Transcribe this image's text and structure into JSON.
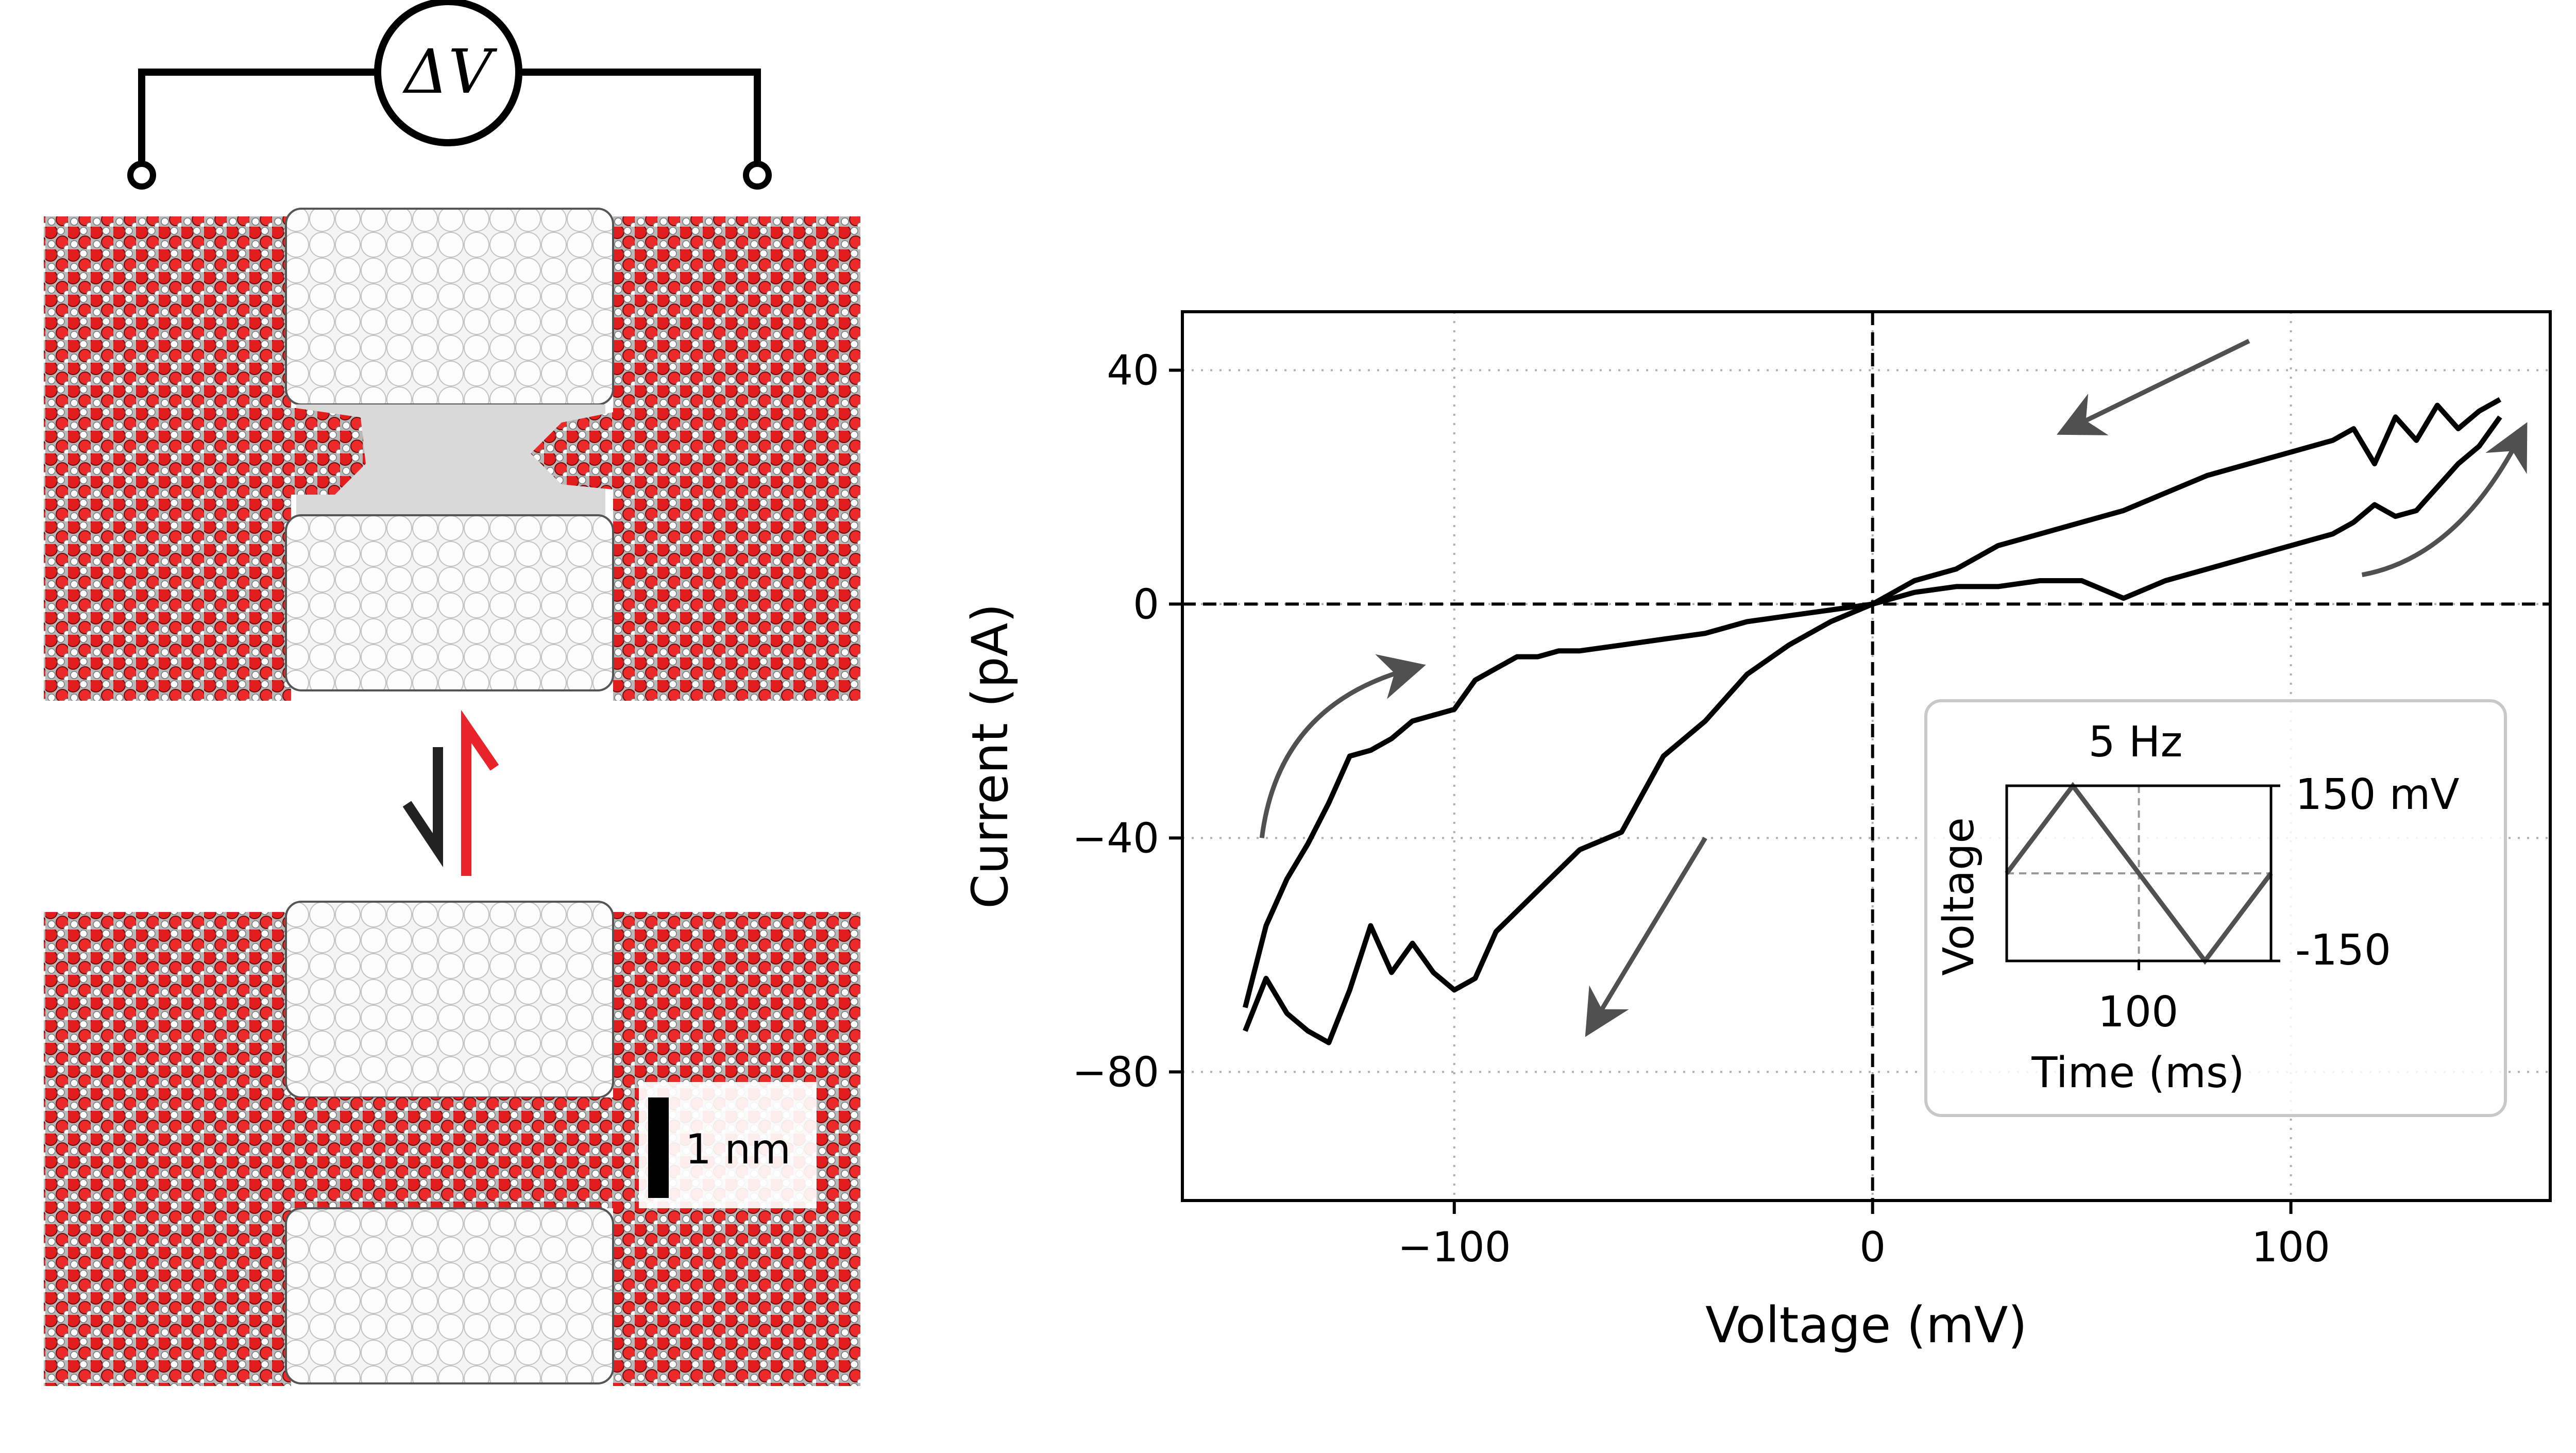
{
  "schematic": {
    "voltage_symbol": "ΔV",
    "scale_bar_label": "1 nm"
  },
  "chart_data": {
    "type": "line",
    "xlabel": "Voltage (mV)",
    "ylabel": "Current (pA)",
    "xlim": [
      -165,
      162
    ],
    "ylim": [
      -102,
      50
    ],
    "x_ticks": [
      -100,
      0,
      100
    ],
    "y_ticks": [
      40,
      0,
      -40,
      -80
    ],
    "x_tick_labels": [
      "−100",
      "0",
      "100"
    ],
    "y_tick_labels": [
      "40",
      "0",
      "−40",
      "−80"
    ],
    "grid": true,
    "zero_lines": "dashed",
    "line_color": "#000000",
    "arrow_color": "#505050",
    "series": [
      {
        "x": [
          -150,
          -145,
          -140,
          -135,
          -130,
          -125,
          -120,
          -115,
          -110,
          -105,
          -100,
          -95,
          -90,
          -85,
          -80,
          -75,
          -70,
          -60,
          -50,
          -40,
          -30,
          -20,
          -10,
          0,
          10,
          20,
          30,
          40,
          50,
          60,
          70,
          80,
          90,
          100,
          110,
          115,
          120,
          125,
          130,
          135,
          140,
          145,
          150
        ],
        "y": [
          -69,
          -55,
          -47,
          -41,
          -34,
          -26,
          -25,
          -23,
          -20,
          -19,
          -18,
          -13,
          -11,
          -9,
          -9,
          -8,
          -8,
          -7,
          -6,
          -5,
          -3,
          -2,
          -1,
          0,
          4,
          6,
          10,
          12,
          14,
          16,
          19,
          22,
          24,
          26,
          28,
          30,
          24,
          32,
          28,
          34,
          30,
          33,
          35
        ]
      },
      {
        "x": [
          150,
          145,
          140,
          135,
          130,
          125,
          120,
          115,
          110,
          100,
          90,
          80,
          70,
          60,
          50,
          40,
          30,
          20,
          10,
          0,
          -10,
          -20,
          -30,
          -40,
          -50,
          -60,
          -70,
          -80,
          -90,
          -95,
          -100,
          -105,
          -110,
          -115,
          -120,
          -125,
          -130,
          -135,
          -140,
          -145,
          -150
        ],
        "y": [
          32,
          27,
          24,
          20,
          16,
          15,
          17,
          14,
          12,
          10,
          8,
          6,
          4,
          1,
          4,
          4,
          3,
          3,
          2,
          0,
          -3,
          -7,
          -12,
          -20,
          -26,
          -39,
          -42,
          -49,
          -56,
          -64,
          -66,
          -63,
          -58,
          -63,
          -55,
          -66,
          -75,
          -73,
          -70,
          -64,
          -73
        ]
      }
    ],
    "inset": {
      "title": "5 Hz",
      "xlabel": "Time (ms)",
      "ylabel": "Voltage",
      "x_ticks": [
        100
      ],
      "x_tick_labels": [
        "100"
      ],
      "y_tick_labels": [
        "150 mV",
        "-150"
      ],
      "period_ms": 200,
      "amplitude_mv": 150,
      "xlim": [
        0,
        200
      ],
      "ylim": [
        -150,
        150
      ]
    }
  }
}
